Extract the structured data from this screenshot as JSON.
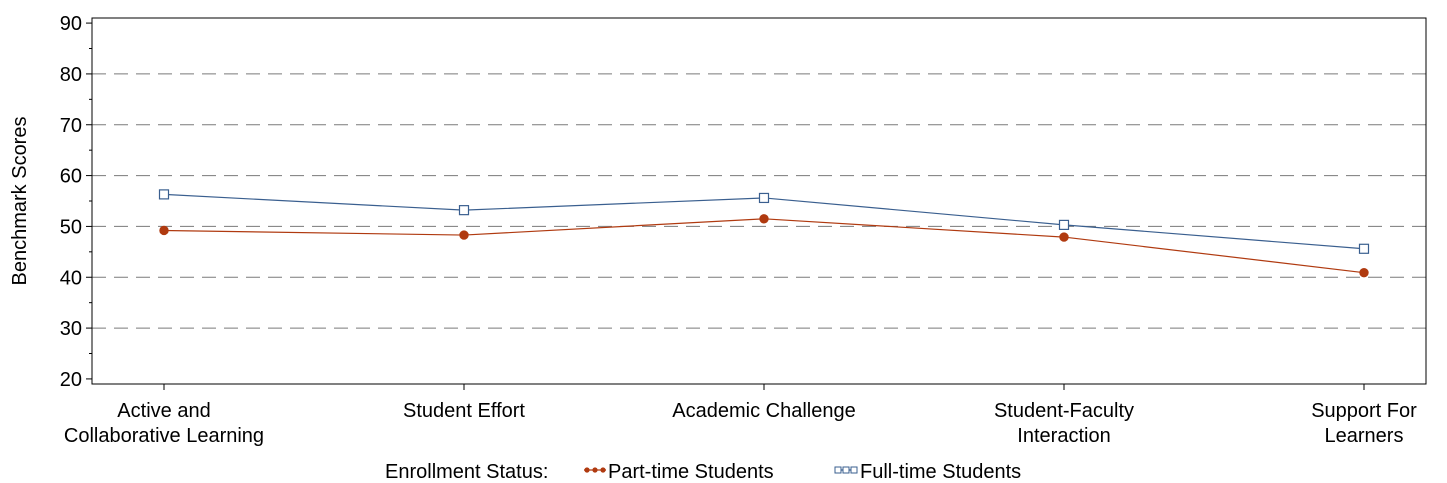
{
  "chart_data": {
    "type": "line",
    "categories": [
      [
        "Active and",
        "Collaborative Learning"
      ],
      [
        "Student Effort"
      ],
      [
        "Academic Challenge"
      ],
      [
        "Student-Faculty",
        "Interaction"
      ],
      [
        "Support For",
        "Learners"
      ]
    ],
    "series": [
      {
        "name": "Part-time Students",
        "values": [
          49.2,
          48.3,
          51.5,
          47.9,
          40.9
        ],
        "color": "#b03a10",
        "marker": "filled-circle"
      },
      {
        "name": "Full-time Students",
        "values": [
          56.3,
          53.2,
          55.6,
          50.3,
          45.6
        ],
        "color": "#3a5f8f",
        "marker": "open-square"
      }
    ],
    "ylabel": "Benchmark Scores",
    "ylim": [
      19,
      91
    ],
    "yticks": [
      20,
      30,
      40,
      50,
      60,
      70,
      80,
      90
    ],
    "grid": "dashed horizontal",
    "legend": {
      "title": "Enrollment Status:",
      "placement": "bottom-center"
    }
  }
}
